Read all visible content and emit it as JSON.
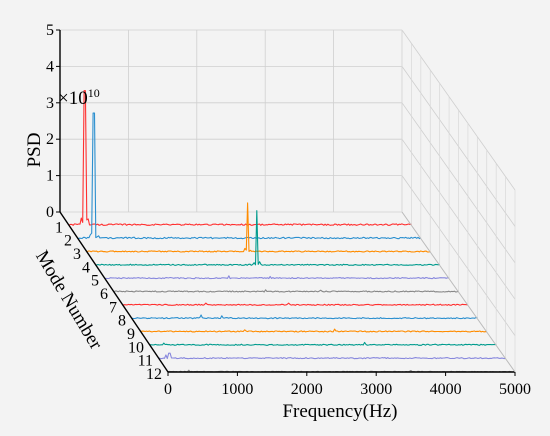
{
  "chart_data": {
    "type": "3d-waterfall-line",
    "zlabel": "PSD",
    "z_multiplier": "×10",
    "z_multiplier_exponent": "10",
    "z_ticks": [
      "0",
      "1",
      "2",
      "3",
      "4",
      "5"
    ],
    "zlim": [
      0,
      5
    ],
    "xlabel": "Frequency(Hz)",
    "x_ticks": [
      "0",
      "1000",
      "2000",
      "3000",
      "4000",
      "5000"
    ],
    "xlim": [
      0,
      5000
    ],
    "ylabel": "Mode Number",
    "y_ticks": [
      "1",
      "2",
      "3",
      "4",
      "5",
      "6",
      "7",
      "8",
      "9",
      "10",
      "11",
      "12"
    ],
    "grid": true,
    "series": [
      {
        "mode": 1,
        "color": "#ff3030",
        "peaks": [
          [
            230,
            3.7
          ],
          [
            180,
            0.2
          ],
          [
            260,
            0.15
          ]
        ],
        "noise": 0.04
      },
      {
        "mode": 2,
        "color": "#2b8fcf",
        "peaks": [
          [
            230,
            3.45
          ],
          [
            200,
            0.15
          ],
          [
            300,
            0.08
          ]
        ],
        "noise": 0.04
      },
      {
        "mode": 3,
        "color": "#ff8c00",
        "peaks": [
          [
            2340,
            1.35
          ],
          [
            2300,
            0.1
          ]
        ],
        "noise": 0.03
      },
      {
        "mode": 4,
        "color": "#009b8d",
        "peaks": [
          [
            2340,
            1.5
          ],
          [
            2380,
            0.1
          ]
        ],
        "noise": 0.03
      },
      {
        "mode": 5,
        "color": "#8888dd",
        "peaks": [
          [
            1800,
            0.08
          ],
          [
            2400,
            0.06
          ]
        ],
        "noise": 0.03
      },
      {
        "mode": 6,
        "color": "#888888",
        "peaks": [
          [
            2200,
            0.06
          ],
          [
            3000,
            0.05
          ]
        ],
        "noise": 0.03
      },
      {
        "mode": 7,
        "color": "#ff3030",
        "peaks": [
          [
            1200,
            0.06
          ],
          [
            2400,
            0.06
          ]
        ],
        "noise": 0.03
      },
      {
        "mode": 8,
        "color": "#2b8fcf",
        "peaks": [
          [
            1000,
            0.1
          ],
          [
            1300,
            0.08
          ]
        ],
        "noise": 0.03
      },
      {
        "mode": 9,
        "color": "#ff8c00",
        "peaks": [
          [
            2800,
            0.08
          ],
          [
            1500,
            0.06
          ]
        ],
        "noise": 0.03
      },
      {
        "mode": 10,
        "color": "#009b8d",
        "peaks": [
          [
            3100,
            0.08
          ],
          [
            200,
            0.06
          ]
        ],
        "noise": 0.03
      },
      {
        "mode": 11,
        "color": "#8888dd",
        "peaks": [
          [
            150,
            0.15
          ],
          [
            100,
            0.1
          ]
        ],
        "noise": 0.03
      },
      {
        "mode": 12,
        "color": "#888888",
        "peaks": [
          [
            300,
            0.05
          ],
          [
            3500,
            0.04
          ]
        ],
        "noise": 0.02
      }
    ]
  }
}
